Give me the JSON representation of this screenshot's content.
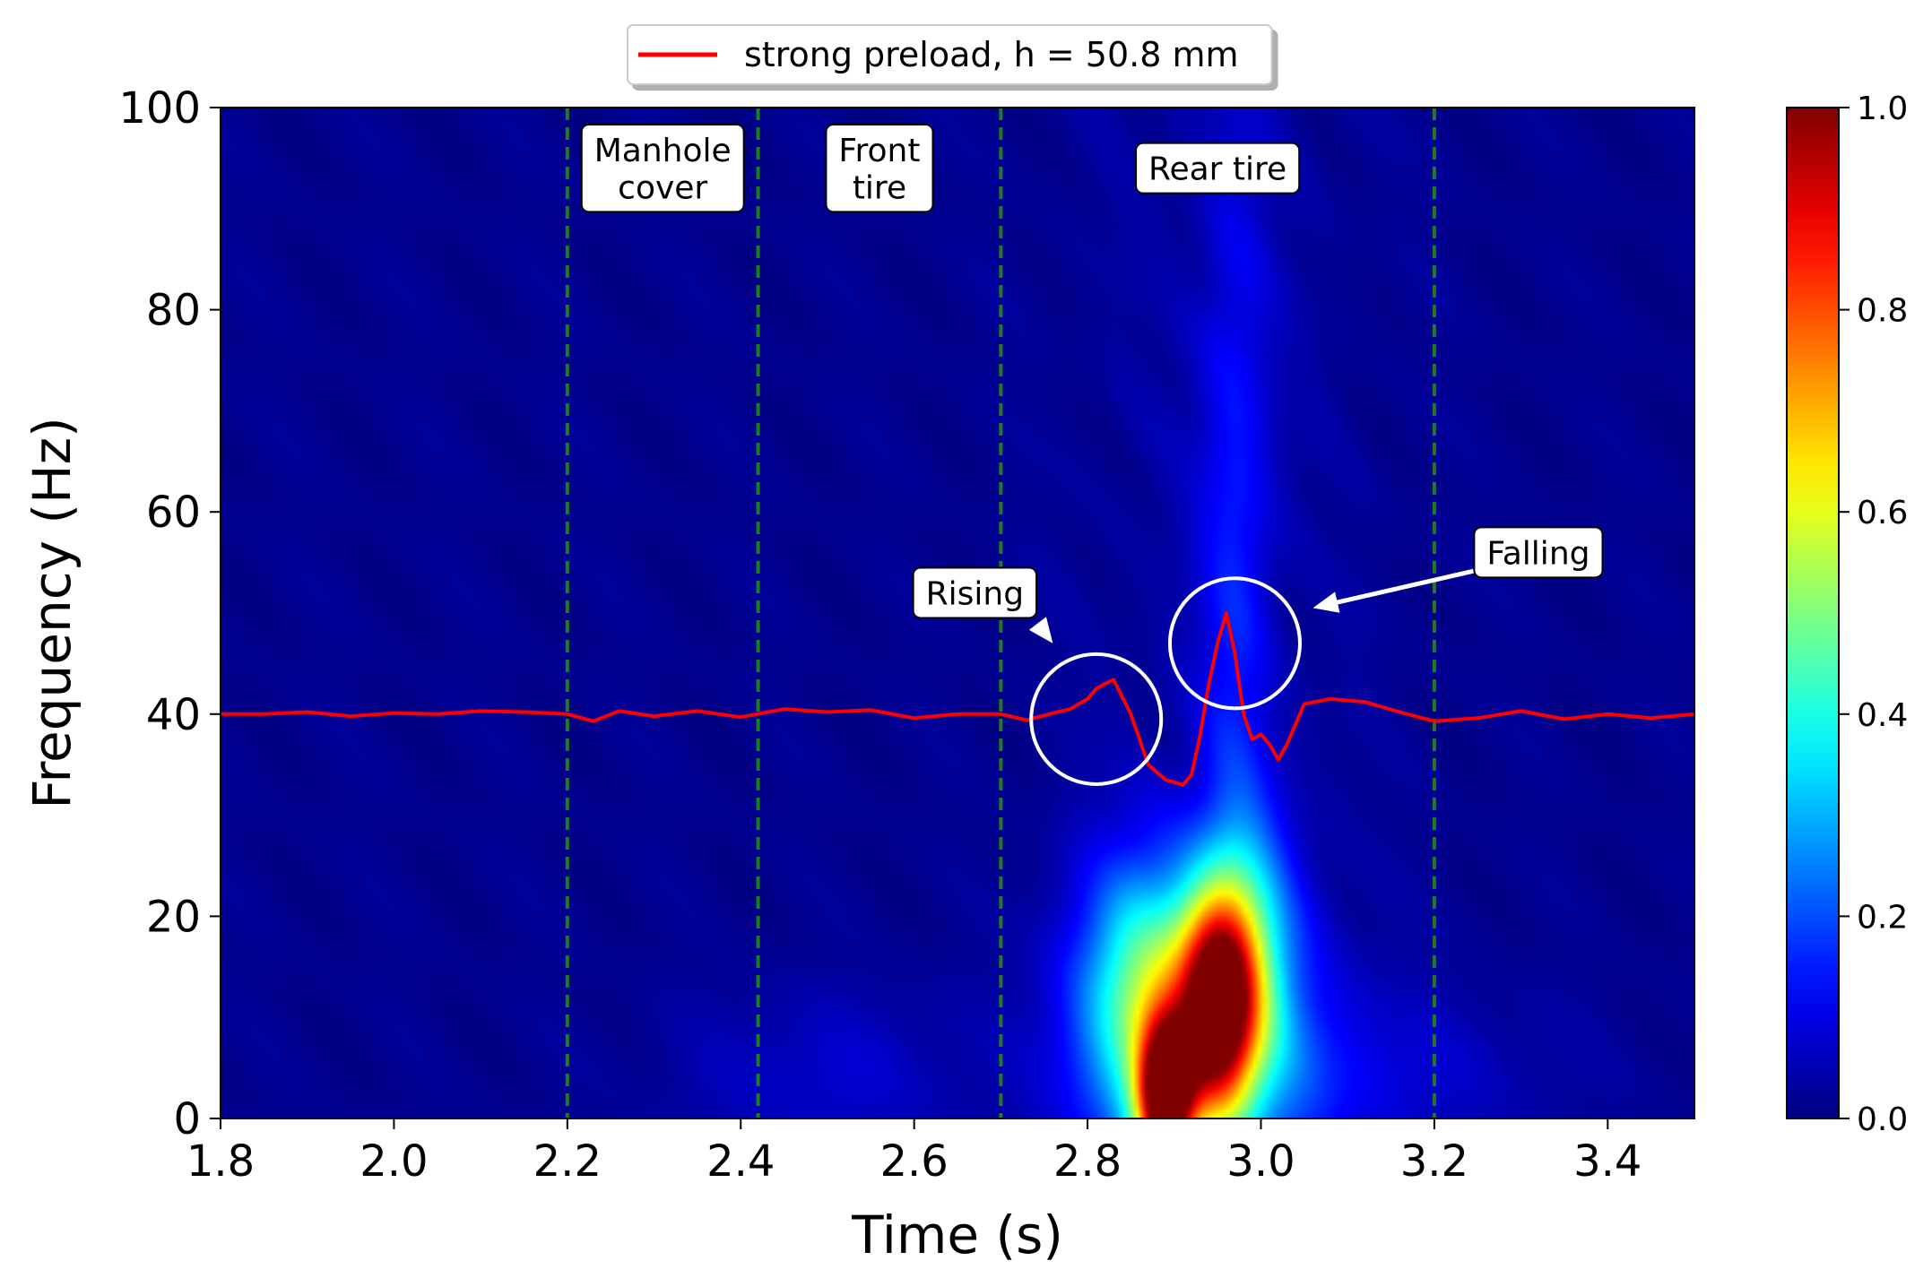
{
  "chart_data": {
    "type": "heatmap",
    "xlabel": "Time (s)",
    "ylabel": "Frequency (Hz)",
    "xlim": [
      1.8,
      3.5
    ],
    "ylim": [
      0,
      100
    ],
    "xticks": [
      1.8,
      2.0,
      2.2,
      2.4,
      2.6,
      2.8,
      3.0,
      3.2,
      3.4
    ],
    "xtick_labels": [
      "1.8",
      "2.0",
      "2.2",
      "2.4",
      "2.6",
      "2.8",
      "3.0",
      "3.2",
      "3.4"
    ],
    "yticks": [
      0,
      20,
      40,
      60,
      80,
      100
    ],
    "ytick_labels": [
      "0",
      "20",
      "40",
      "60",
      "80",
      "100"
    ],
    "colorbar": {
      "colormap": "jet",
      "range": [
        0.0,
        1.0
      ],
      "ticks": [
        0.0,
        0.2,
        0.4,
        0.6,
        0.8,
        1.0
      ],
      "tick_labels": [
        "0.0",
        "0.2",
        "0.4",
        "0.6",
        "0.8",
        "1.0"
      ]
    },
    "heatmap_blobs": [
      {
        "t": 2.89,
        "f": 2,
        "st": 0.022,
        "sf": 5,
        "amp": 0.95
      },
      {
        "t": 2.95,
        "f": 11,
        "st": 0.03,
        "sf": 7,
        "amp": 0.75
      },
      {
        "t": 2.87,
        "f": 13,
        "st": 0.055,
        "sf": 9,
        "amp": 0.35
      },
      {
        "t": 2.98,
        "f": 17,
        "st": 0.04,
        "sf": 9,
        "amp": 0.3
      },
      {
        "t": 2.93,
        "f": 7,
        "st": 0.09,
        "sf": 10,
        "amp": 0.25
      },
      {
        "t": 2.97,
        "f": 55,
        "st": 0.03,
        "sf": 28,
        "amp": 0.12
      },
      {
        "t": 2.5,
        "f": 4,
        "st": 0.12,
        "sf": 6,
        "amp": 0.06
      },
      {
        "t": 3.1,
        "f": 4,
        "st": 0.15,
        "sf": 6,
        "amp": 0.07
      }
    ],
    "series": [
      {
        "name": "strong preload, h = 50.8 mm",
        "color": "#ff0000",
        "x": [
          1.8,
          1.85,
          1.9,
          1.95,
          2.0,
          2.05,
          2.1,
          2.15,
          2.2,
          2.23,
          2.26,
          2.3,
          2.35,
          2.4,
          2.45,
          2.5,
          2.55,
          2.6,
          2.65,
          2.7,
          2.73,
          2.76,
          2.78,
          2.8,
          2.81,
          2.82,
          2.83,
          2.85,
          2.87,
          2.89,
          2.91,
          2.92,
          2.93,
          2.94,
          2.95,
          2.96,
          2.97,
          2.98,
          2.99,
          3.0,
          3.01,
          3.02,
          3.03,
          3.05,
          3.08,
          3.12,
          3.16,
          3.2,
          3.25,
          3.3,
          3.35,
          3.4,
          3.45,
          3.5
        ],
        "y": [
          40,
          40,
          40.2,
          39.8,
          40.1,
          40,
          40.3,
          40.2,
          40,
          39.3,
          40.3,
          39.8,
          40.3,
          39.7,
          40.5,
          40.2,
          40.4,
          39.6,
          40,
          40,
          39.4,
          40.1,
          40.5,
          41.5,
          42.5,
          43,
          43.4,
          40,
          35,
          33.5,
          33,
          34,
          38,
          43,
          47,
          50,
          46,
          40,
          37.5,
          38,
          37,
          35.5,
          37,
          41,
          41.5,
          41.2,
          40.2,
          39.3,
          39.6,
          40.3,
          39.5,
          40,
          39.6,
          40
        ]
      }
    ],
    "vertical_lines": [
      2.2,
      2.42,
      2.7,
      3.2
    ],
    "region_labels": [
      {
        "lines": [
          "Manhole",
          "cover"
        ],
        "t": 2.31,
        "f": 94
      },
      {
        "lines": [
          "Front",
          "tire"
        ],
        "t": 2.56,
        "f": 94
      },
      {
        "lines": [
          "Rear tire"
        ],
        "t": 2.95,
        "f": 94
      }
    ],
    "annotations": [
      {
        "text": "Rising",
        "text_t": 2.67,
        "text_f": 52,
        "circle_t": 2.81,
        "circle_f": 39.5,
        "circle_r_t": 0.075,
        "arrow_to_t": 2.76,
        "arrow_to_f": 47
      },
      {
        "text": "Falling",
        "text_t": 3.32,
        "text_f": 56,
        "circle_t": 2.97,
        "circle_f": 47,
        "circle_r_t": 0.075,
        "arrow_to_t": 3.06,
        "arrow_to_f": 50.5
      }
    ],
    "legend": {
      "placement": "top-center",
      "label": "strong preload, h = 50.8 mm"
    }
  }
}
